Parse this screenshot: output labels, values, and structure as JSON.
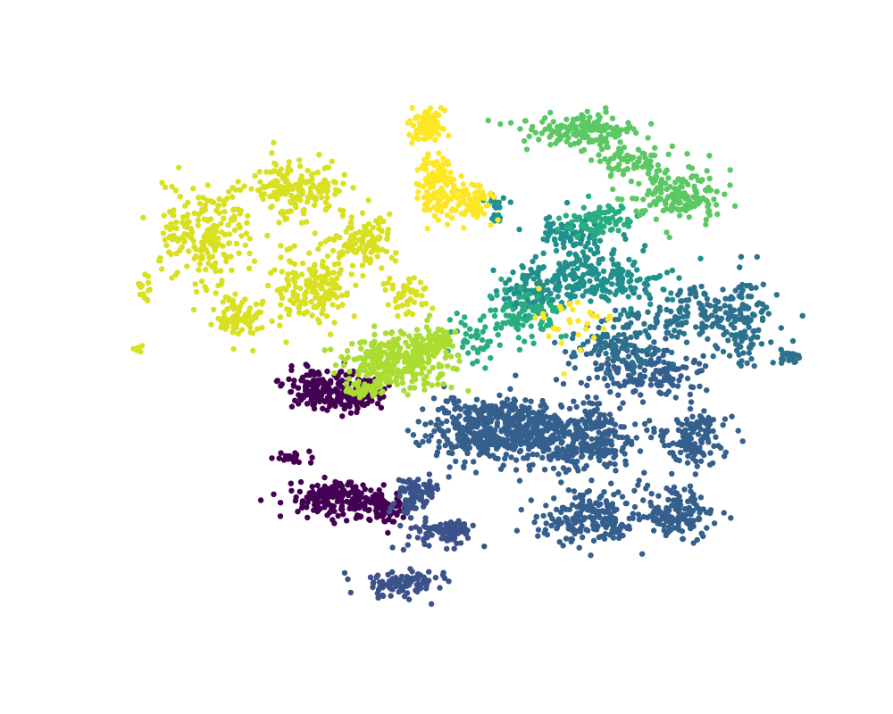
{
  "chart_data": {
    "type": "scatter",
    "title": "",
    "xlabel": "",
    "ylabel": "",
    "axes_visible": false,
    "grid": false,
    "legend": "none",
    "xlim": [
      -110,
      110
    ],
    "ylim": [
      -100,
      100
    ],
    "colormap": "viridis",
    "series": [
      {
        "color": "#440154",
        "clusters": [
          {
            "cx": -42,
            "cy": -12,
            "rx": 10,
            "ry": 6,
            "n": 170
          },
          {
            "cx": -30,
            "cy": -14,
            "rx": 6,
            "ry": 5,
            "n": 70
          },
          {
            "cx": -40,
            "cy": -52,
            "rx": 10,
            "ry": 5,
            "n": 150
          },
          {
            "cx": -25,
            "cy": -55,
            "rx": 8,
            "ry": 5,
            "n": 90
          },
          {
            "cx": -52,
            "cy": -37,
            "rx": 4,
            "ry": 2,
            "n": 25
          }
        ]
      },
      {
        "color": "#3b528b",
        "clusters": [
          {
            "cx": -15,
            "cy": -52,
            "rx": 5,
            "ry": 5,
            "n": 60
          },
          {
            "cx": -5,
            "cy": -65,
            "rx": 8,
            "ry": 4,
            "n": 90
          },
          {
            "cx": -17,
            "cy": -83,
            "rx": 10,
            "ry": 4,
            "n": 100
          },
          {
            "cx": -10,
            "cy": -48,
            "rx": 4,
            "ry": 3,
            "n": 30
          }
        ]
      },
      {
        "color": "#355f8d",
        "clusters": [
          {
            "cx": 12,
            "cy": -27,
            "rx": 18,
            "ry": 10,
            "n": 480
          },
          {
            "cx": 40,
            "cy": -30,
            "rx": 14,
            "ry": 10,
            "n": 300
          },
          {
            "cx": 42,
            "cy": -60,
            "rx": 14,
            "ry": 8,
            "n": 200
          },
          {
            "cx": 70,
            "cy": -58,
            "rx": 10,
            "ry": 8,
            "n": 140
          },
          {
            "cx": 75,
            "cy": -30,
            "rx": 8,
            "ry": 8,
            "n": 120
          },
          {
            "cx": 60,
            "cy": -5,
            "rx": 18,
            "ry": 8,
            "n": 160
          }
        ]
      },
      {
        "color": "#2c728e",
        "clusters": [
          {
            "cx": 70,
            "cy": 15,
            "rx": 18,
            "ry": 10,
            "n": 150
          },
          {
            "cx": 90,
            "cy": 15,
            "rx": 8,
            "ry": 14,
            "n": 110
          },
          {
            "cx": 105,
            "cy": 0,
            "rx": 3,
            "ry": 2,
            "n": 25
          },
          {
            "cx": 50,
            "cy": 5,
            "rx": 12,
            "ry": 8,
            "n": 80
          }
        ]
      },
      {
        "color": "#21908d",
        "clusters": [
          {
            "cx": 45,
            "cy": 30,
            "rx": 16,
            "ry": 10,
            "n": 180
          },
          {
            "cx": 25,
            "cy": 25,
            "rx": 10,
            "ry": 8,
            "n": 100
          },
          {
            "cx": 35,
            "cy": 45,
            "rx": 8,
            "ry": 6,
            "n": 70
          },
          {
            "cx": 12,
            "cy": 55,
            "rx": 4,
            "ry": 4,
            "n": 25
          }
        ]
      },
      {
        "color": "#27ad81",
        "clusters": [
          {
            "cx": 20,
            "cy": 15,
            "rx": 12,
            "ry": 8,
            "n": 100
          },
          {
            "cx": 45,
            "cy": 50,
            "rx": 10,
            "ry": 5,
            "n": 80
          },
          {
            "cx": 5,
            "cy": 5,
            "rx": 6,
            "ry": 5,
            "n": 30
          }
        ]
      },
      {
        "color": "#5cc863",
        "clusters": [
          {
            "cx": 40,
            "cy": 83,
            "rx": 14,
            "ry": 5,
            "n": 160
          },
          {
            "cx": 70,
            "cy": 60,
            "rx": 12,
            "ry": 8,
            "n": 150
          },
          {
            "cx": 55,
            "cy": 72,
            "rx": 10,
            "ry": 5,
            "n": 60
          }
        ]
      },
      {
        "color": "#aadc32",
        "clusters": [
          {
            "cx": -20,
            "cy": -2,
            "rx": 14,
            "ry": 8,
            "n": 280
          },
          {
            "cx": -8,
            "cy": 5,
            "rx": 6,
            "ry": 5,
            "n": 70
          },
          {
            "cx": -30,
            "cy": -12,
            "rx": 5,
            "ry": 3,
            "n": 40
          }
        ]
      },
      {
        "color": "#d9e021",
        "clusters": [
          {
            "cx": -80,
            "cy": 45,
            "rx": 12,
            "ry": 14,
            "n": 200
          },
          {
            "cx": -52,
            "cy": 62,
            "rx": 14,
            "ry": 8,
            "n": 180
          },
          {
            "cx": -45,
            "cy": 25,
            "rx": 10,
            "ry": 10,
            "n": 170
          },
          {
            "cx": -30,
            "cy": 42,
            "rx": 8,
            "ry": 8,
            "n": 110
          },
          {
            "cx": -70,
            "cy": 15,
            "rx": 8,
            "ry": 6,
            "n": 80
          },
          {
            "cx": -15,
            "cy": 22,
            "rx": 6,
            "ry": 5,
            "n": 50
          },
          {
            "cx": -100,
            "cy": 25,
            "rx": 2,
            "ry": 3,
            "n": 15
          },
          {
            "cx": -102,
            "cy": 3,
            "rx": 1,
            "ry": 1,
            "n": 8
          }
        ]
      },
      {
        "color": "#fde725",
        "clusters": [
          {
            "cx": -10,
            "cy": 85,
            "rx": 5,
            "ry": 5,
            "n": 90
          },
          {
            "cx": -7,
            "cy": 62,
            "rx": 5,
            "ry": 10,
            "n": 130
          },
          {
            "cx": 5,
            "cy": 57,
            "rx": 6,
            "ry": 5,
            "n": 70
          },
          {
            "cx": 35,
            "cy": 15,
            "rx": 12,
            "ry": 10,
            "n": 30
          }
        ]
      }
    ]
  }
}
